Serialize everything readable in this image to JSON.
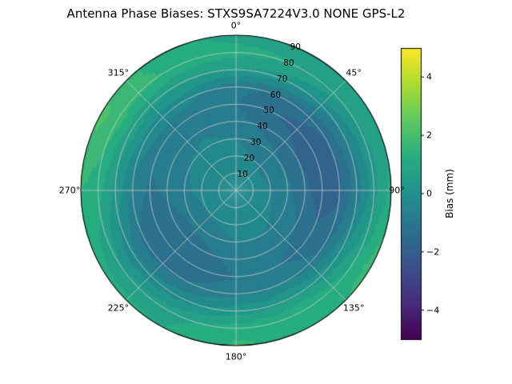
{
  "title": "Antenna Phase Biases: STXS9SA7224V3.0 NONE GPS-L2",
  "colorbar": {
    "label": "Bias (mm)",
    "tick_values": [
      -4,
      -2,
      0,
      2,
      4
    ],
    "tick_labels": [
      "−4",
      "−2",
      "0",
      "2",
      "4"
    ],
    "vmin": -5,
    "vmax": 5
  },
  "chart_data": {
    "type": "heatmap",
    "projection": "polar",
    "title": "Antenna Phase Biases: STXS9SA7224V3.0 NONE GPS-L2",
    "colormap": "viridis",
    "colormap_colors": [
      "#440154",
      "#472c7a",
      "#3b518b",
      "#2c718e",
      "#21908d",
      "#27ad81",
      "#5cc863",
      "#aadc32",
      "#fde725"
    ],
    "vmin": -5,
    "vmax": 5,
    "level_step": 0.5,
    "colorbar_label": "Bias (mm)",
    "azimuth_tick_labels": [
      "0°",
      "45°",
      "90°",
      "135°",
      "180°",
      "225°",
      "270°",
      "315°"
    ],
    "radial_tick_labels": [
      "10",
      "20",
      "30",
      "40",
      "50",
      "60",
      "70",
      "80",
      "90"
    ],
    "azimuth_deg": [
      0,
      30,
      60,
      90,
      120,
      150,
      180,
      210,
      240,
      270,
      300,
      330
    ],
    "elevation_ring": [
      0,
      10,
      20,
      30,
      40,
      50,
      60,
      70,
      80,
      90
    ],
    "bias_mm": [
      [
        0.0,
        -0.2,
        -0.3,
        -0.5,
        -0.8,
        -1.0,
        -0.8,
        0.5,
        1.2,
        0.8
      ],
      [
        0.0,
        -0.3,
        -0.5,
        -0.8,
        -1.2,
        -1.5,
        -1.2,
        0.2,
        1.0,
        0.6
      ],
      [
        0.0,
        -0.3,
        -0.6,
        -1.0,
        -1.5,
        -1.8,
        -1.5,
        -0.5,
        0.5,
        0.8
      ],
      [
        0.0,
        -0.3,
        -0.5,
        -0.9,
        -1.4,
        -1.8,
        -1.6,
        -0.8,
        0.3,
        1.2
      ],
      [
        0.0,
        -0.2,
        -0.4,
        -0.7,
        -1.0,
        -1.4,
        -1.2,
        0.0,
        1.0,
        1.8
      ],
      [
        0.0,
        -0.2,
        -0.3,
        -0.5,
        -0.8,
        -1.0,
        -0.5,
        0.5,
        1.5,
        1.2
      ],
      [
        0.0,
        -0.1,
        -0.3,
        -0.5,
        -0.8,
        -1.0,
        -0.6,
        0.3,
        1.3,
        1.6
      ],
      [
        0.0,
        -0.2,
        -0.4,
        -0.8,
        -1.2,
        -1.4,
        -1.0,
        -0.2,
        0.8,
        1.0
      ],
      [
        0.0,
        -0.2,
        -0.5,
        -0.9,
        -1.3,
        -1.5,
        -1.2,
        -0.4,
        0.6,
        1.2
      ],
      [
        0.0,
        -0.2,
        -0.4,
        -0.6,
        -0.9,
        -1.1,
        -0.6,
        0.4,
        1.2,
        1.5
      ],
      [
        0.0,
        -0.1,
        -0.3,
        -0.5,
        -0.7,
        -0.8,
        -0.2,
        0.8,
        1.8,
        2.2
      ],
      [
        0.0,
        -0.1,
        -0.2,
        -0.4,
        -0.6,
        -0.8,
        -0.3,
        0.6,
        1.5,
        1.2
      ]
    ]
  }
}
